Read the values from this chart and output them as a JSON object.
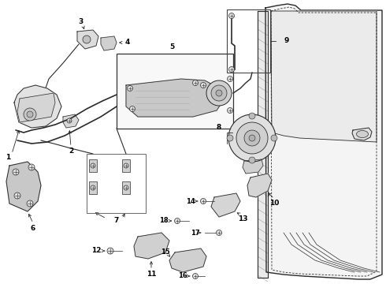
{
  "bg_color": "#ffffff",
  "line_color": "#2a2a2a",
  "label_color": "#000000",
  "label_fontsize": 6.5,
  "fig_width": 4.9,
  "fig_height": 3.6,
  "dpi": 100
}
